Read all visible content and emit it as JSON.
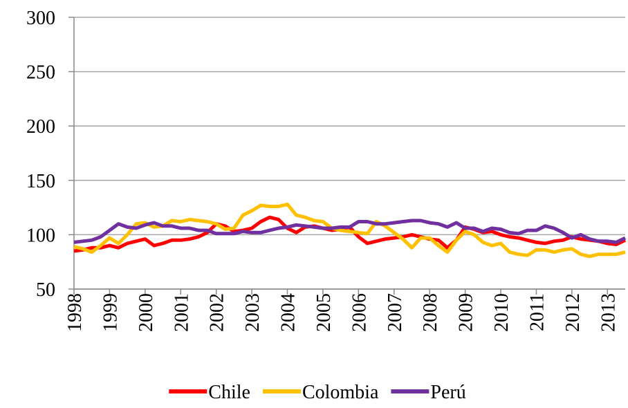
{
  "chart_data": {
    "type": "line",
    "x": [
      1998,
      1998.25,
      1998.5,
      1998.75,
      1999,
      1999.25,
      1999.5,
      1999.75,
      2000,
      2000.25,
      2000.5,
      2000.75,
      2001,
      2001.25,
      2001.5,
      2001.75,
      2002,
      2002.25,
      2002.5,
      2002.75,
      2003,
      2003.25,
      2003.5,
      2003.75,
      2004,
      2004.25,
      2004.5,
      2004.75,
      2005,
      2005.25,
      2005.5,
      2005.75,
      2006,
      2006.25,
      2006.5,
      2006.75,
      2007,
      2007.25,
      2007.5,
      2007.75,
      2008,
      2008.25,
      2008.5,
      2008.75,
      2009,
      2009.25,
      2009.5,
      2009.75,
      2010,
      2010.25,
      2010.5,
      2010.75,
      2011,
      2011.25,
      2011.5,
      2011.75,
      2012,
      2012.25,
      2012.5,
      2012.75,
      2013,
      2013.25,
      2013.5
    ],
    "series": [
      {
        "name": "Chile",
        "color": "#ff0000",
        "values": [
          85,
          86,
          88,
          88,
          90,
          88,
          92,
          94,
          96,
          90,
          92,
          95,
          95,
          96,
          98,
          102,
          110,
          108,
          103,
          104,
          106,
          112,
          116,
          114,
          106,
          102,
          107,
          108,
          106,
          104,
          105,
          107,
          98,
          92,
          94,
          96,
          97,
          98,
          100,
          98,
          96,
          95,
          88,
          95,
          107,
          105,
          102,
          103,
          100,
          98,
          97,
          95,
          93,
          92,
          94,
          95,
          98,
          96,
          95,
          94,
          92,
          91,
          95
        ]
      },
      {
        "name": "Colombia",
        "color": "#ffc000",
        "values": [
          89,
          87,
          84,
          90,
          97,
          92,
          100,
          110,
          111,
          107,
          108,
          113,
          112,
          114,
          113,
          112,
          110,
          105,
          106,
          118,
          122,
          127,
          126,
          126,
          128,
          118,
          116,
          113,
          112,
          106,
          104,
          103,
          102,
          101,
          112,
          108,
          102,
          96,
          88,
          97,
          97,
          90,
          84,
          95,
          103,
          100,
          93,
          90,
          92,
          84,
          82,
          81,
          86,
          86,
          84,
          86,
          87,
          82,
          80,
          82,
          82,
          82,
          84
        ]
      },
      {
        "name": "Perú",
        "color": "#7030a0",
        "values": [
          93,
          94,
          95,
          98,
          104,
          110,
          107,
          106,
          109,
          111,
          108,
          108,
          106,
          106,
          104,
          104,
          101,
          101,
          101,
          103,
          102,
          102,
          104,
          106,
          107,
          109,
          108,
          107,
          106,
          106,
          107,
          107,
          112,
          112,
          110,
          110,
          111,
          112,
          113,
          113,
          111,
          110,
          107,
          111,
          106,
          106,
          103,
          106,
          105,
          102,
          101,
          104,
          104,
          108,
          106,
          102,
          97,
          100,
          96,
          94,
          94,
          93,
          97
        ]
      }
    ],
    "xlim": [
      1998,
      2013.5
    ],
    "xticks": [
      1998,
      1999,
      2000,
      2001,
      2002,
      2003,
      2004,
      2005,
      2006,
      2007,
      2008,
      2009,
      2010,
      2011,
      2012,
      2013
    ],
    "ylim": [
      50,
      300
    ],
    "yticks": [
      50,
      100,
      150,
      200,
      250,
      300
    ],
    "grid": true,
    "legend": "bottom"
  }
}
